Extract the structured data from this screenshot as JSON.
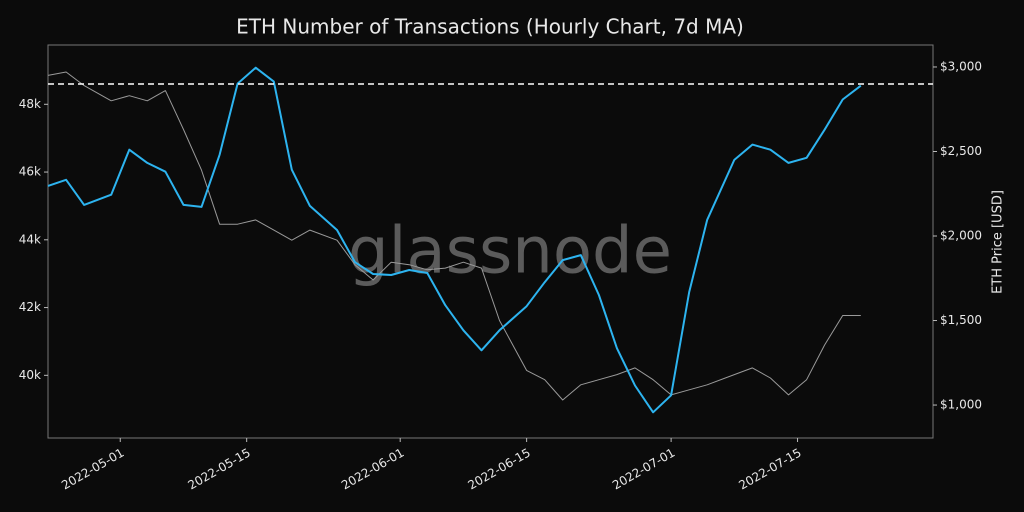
{
  "chart_data": {
    "type": "line",
    "title": "ETH Number of Transactions (Hourly Chart, 7d MA)",
    "y2label": "ETH Price [USD]",
    "watermark": "glassnode",
    "x": [
      "2022-04-23",
      "2022-04-25",
      "2022-04-27",
      "2022-04-30",
      "2022-05-02",
      "2022-05-04",
      "2022-05-06",
      "2022-05-08",
      "2022-05-10",
      "2022-05-12",
      "2022-05-14",
      "2022-05-16",
      "2022-05-18",
      "2022-05-20",
      "2022-05-22",
      "2022-05-25",
      "2022-05-27",
      "2022-05-29",
      "2022-05-31",
      "2022-06-02",
      "2022-06-04",
      "2022-06-06",
      "2022-06-08",
      "2022-06-10",
      "2022-06-12",
      "2022-06-15",
      "2022-06-17",
      "2022-06-19",
      "2022-06-21",
      "2022-06-23",
      "2022-06-25",
      "2022-06-27",
      "2022-06-29",
      "2022-07-01",
      "2022-07-03",
      "2022-07-05",
      "2022-07-08",
      "2022-07-10",
      "2022-07-12",
      "2022-07-14",
      "2022-07-16",
      "2022-07-18",
      "2022-07-20",
      "2022-07-22"
    ],
    "series": [
      {
        "color": "#2db4f0",
        "values": [
          45590,
          45770,
          45030,
          45330,
          46660,
          46270,
          46010,
          45030,
          44970,
          46510,
          48610,
          49080,
          48670,
          46070,
          45000,
          44290,
          43340,
          42990,
          42960,
          43110,
          43020,
          42070,
          41330,
          40740,
          41330,
          42040,
          42750,
          43400,
          43550,
          42370,
          40800,
          39700,
          38910,
          39410,
          42460,
          44590,
          46360,
          46810,
          46660,
          46270,
          46420,
          47250,
          48140,
          48550
        ]
      },
      {
        "color": "#9a9a9a",
        "axis": "y2",
        "values": [
          2950,
          2970,
          2890,
          2800,
          2830,
          2800,
          2860,
          2630,
          2390,
          2070,
          2070,
          2095,
          2035,
          1975,
          2035,
          1975,
          1830,
          1740,
          1845,
          1830,
          1800,
          1810,
          1845,
          1810,
          1500,
          1205,
          1150,
          1030,
          1120,
          1150,
          1180,
          1220,
          1150,
          1060,
          1090,
          1120,
          1180,
          1220,
          1160,
          1060,
          1150,
          1355,
          1530,
          1530
        ]
      }
    ],
    "xlim": [
      "2022-04-23",
      "2022-07-30"
    ],
    "xticks": [
      "2022-05-01",
      "2022-05-15",
      "2022-06-01",
      "2022-06-15",
      "2022-07-01",
      "2022-07-15"
    ],
    "ylim": [
      38150,
      49750
    ],
    "yticks": [
      {
        "value": 40000,
        "label": "40k"
      },
      {
        "value": 42000,
        "label": "42k"
      },
      {
        "value": 44000,
        "label": "44k"
      },
      {
        "value": 46000,
        "label": "46k"
      },
      {
        "value": 48000,
        "label": "48k"
      }
    ],
    "y2lim": [
      805,
      3130
    ],
    "y2ticks": [
      {
        "value": 1000,
        "label": "$1,000"
      },
      {
        "value": 1500,
        "label": "$1,500"
      },
      {
        "value": 2000,
        "label": "$2,000"
      },
      {
        "value": 2500,
        "label": "$2,500"
      },
      {
        "value": 3000,
        "label": "$3,000"
      }
    ],
    "hline": 48600
  }
}
